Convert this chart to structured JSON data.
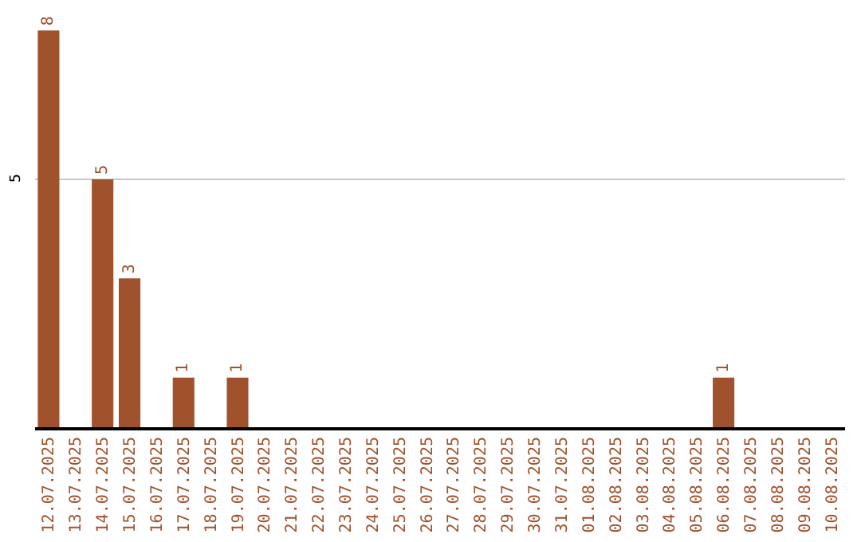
{
  "chart_data": {
    "type": "bar",
    "categories": [
      "12.07.2025",
      "13.07.2025",
      "14.07.2025",
      "15.07.2025",
      "16.07.2025",
      "17.07.2025",
      "18.07.2025",
      "19.07.2025",
      "20.07.2025",
      "21.07.2025",
      "22.07.2025",
      "23.07.2025",
      "24.07.2025",
      "25.07.2025",
      "26.07.2025",
      "27.07.2025",
      "28.07.2025",
      "29.07.2025",
      "30.07.2025",
      "31.07.2025",
      "01.08.2025",
      "02.08.2025",
      "03.08.2025",
      "04.08.2025",
      "05.08.2025",
      "06.08.2025",
      "07.08.2025",
      "08.08.2025",
      "09.08.2025",
      "10.08.2025"
    ],
    "values": [
      8,
      0,
      5,
      3,
      0,
      1,
      0,
      1,
      0,
      0,
      0,
      0,
      0,
      0,
      0,
      0,
      0,
      0,
      0,
      0,
      0,
      0,
      0,
      0,
      0,
      1,
      0,
      0,
      0,
      0
    ],
    "value_labels": [
      "8",
      null,
      "5",
      "3",
      null,
      "1",
      null,
      "1",
      null,
      null,
      null,
      null,
      null,
      null,
      null,
      null,
      null,
      null,
      null,
      null,
      null,
      null,
      null,
      null,
      null,
      "1",
      null,
      null,
      null,
      null
    ],
    "color": "#a0522d",
    "ref_lines": [
      {
        "axis": "y",
        "value": 5,
        "label": "5",
        "color": "#c8c8c8"
      }
    ]
  }
}
